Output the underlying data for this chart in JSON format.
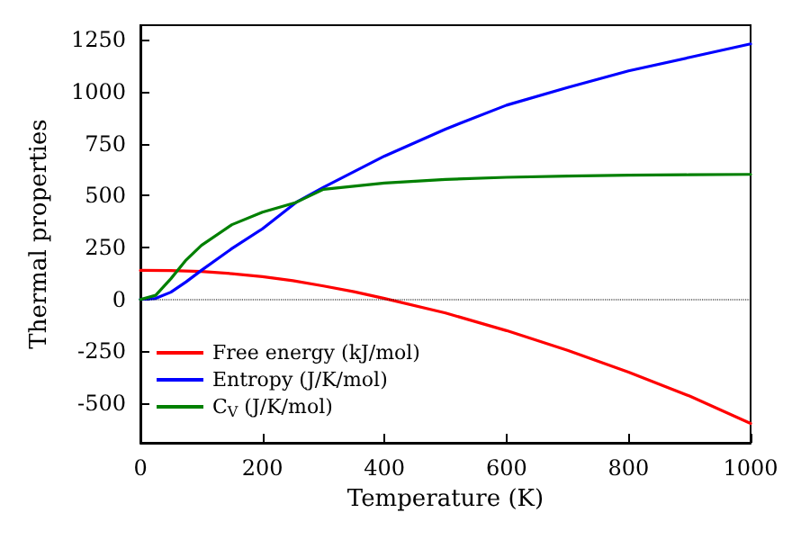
{
  "chart_data": {
    "type": "line",
    "xlabel": "Temperature (K)",
    "ylabel": "Thermal properties",
    "xlim": [
      0,
      1000
    ],
    "xticks": [
      0,
      200,
      400,
      600,
      800,
      1000
    ],
    "ylim": [
      -690,
      1320
    ],
    "yticks": [
      -500,
      -250,
      0,
      250,
      500,
      750,
      1000,
      1250
    ],
    "grid": false,
    "legend": "bottom left",
    "marker": "none",
    "line_style": "solid",
    "ref_lines": [
      {
        "axis": "y",
        "value": 0,
        "color": "#000000",
        "line_style": "dotted"
      }
    ],
    "series": [
      {
        "name": "Free energy (kJ/mol)",
        "color": "#ff0000",
        "x": [
          0,
          50,
          100,
          150,
          200,
          250,
          300,
          350,
          400,
          500,
          600,
          700,
          800,
          900,
          1000
        ],
        "values": [
          140,
          139,
          135,
          124,
          110,
          90,
          65,
          37,
          5,
          -65,
          -150,
          -245,
          -350,
          -465,
          -597
        ]
      },
      {
        "name": "Entropy (J/K/mol)",
        "color": "#0000ff",
        "x": [
          0,
          25,
          50,
          75,
          100,
          150,
          200,
          255,
          300,
          400,
          500,
          600,
          700,
          800,
          900,
          1000
        ],
        "values": [
          0,
          5,
          35,
          85,
          140,
          245,
          340,
          467,
          540,
          690,
          820,
          935,
          1020,
          1100,
          1165,
          1230
        ]
      },
      {
        "name": "C$_{V}$ (J/K/mol)",
        "color": "#008000",
        "x": [
          0,
          25,
          50,
          75,
          100,
          150,
          200,
          255,
          300,
          400,
          500,
          600,
          700,
          800,
          900,
          1000
        ],
        "values": [
          0,
          20,
          100,
          190,
          260,
          360,
          420,
          467,
          530,
          560,
          578,
          588,
          594,
          598,
          600,
          602
        ]
      }
    ]
  }
}
